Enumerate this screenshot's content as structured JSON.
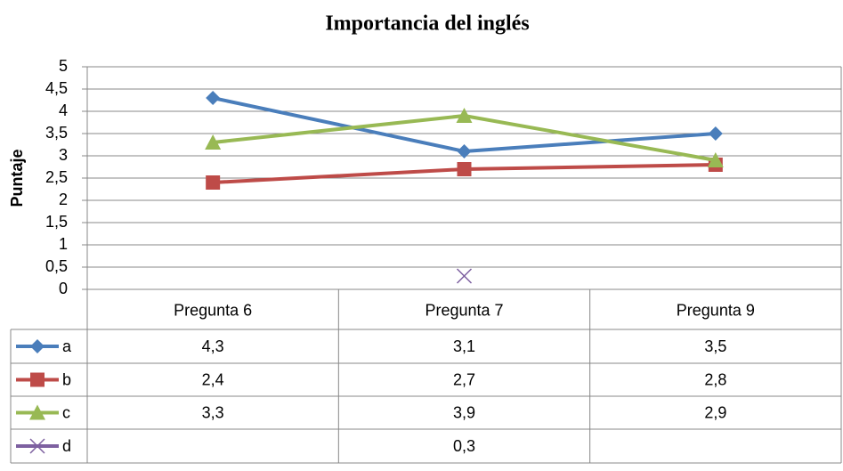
{
  "chart_data": {
    "type": "line",
    "title": "Importancia del inglés",
    "y_label": "Puntaje",
    "categories": [
      "Pregunta 6",
      "Pregunta 7",
      "Pregunta 9"
    ],
    "series": [
      {
        "name": "a",
        "color": "#4a7ebb",
        "marker": "diamond",
        "values": [
          4.3,
          3.1,
          3.5
        ],
        "value_labels": [
          "4,3",
          "3,1",
          "3,5"
        ]
      },
      {
        "name": "b",
        "color": "#be4b48",
        "marker": "square",
        "values": [
          2.4,
          2.7,
          2.8
        ],
        "value_labels": [
          "2,4",
          "2,7",
          "2,8"
        ]
      },
      {
        "name": "c",
        "color": "#98b954",
        "marker": "triangle",
        "values": [
          3.3,
          3.9,
          2.9
        ],
        "value_labels": [
          "3,3",
          "3,9",
          "2,9"
        ]
      },
      {
        "name": "d",
        "color": "#7d60a0",
        "marker": "x",
        "values": [
          null,
          0.3,
          null
        ],
        "value_labels": [
          null,
          "0,3",
          null
        ]
      }
    ],
    "ylim": [
      0,
      5
    ],
    "yticks": [
      0,
      {
        "value": 0.5,
        "label": "0,5"
      },
      1,
      {
        "value": 1.5,
        "label": "1,5"
      },
      2,
      {
        "value": 2.5,
        "label": "2,5"
      },
      3,
      {
        "value": 3.5,
        "label": "3,5"
      },
      4,
      {
        "value": 4.5,
        "label": "4,5"
      },
      5
    ],
    "grid": true,
    "data_table": true
  }
}
